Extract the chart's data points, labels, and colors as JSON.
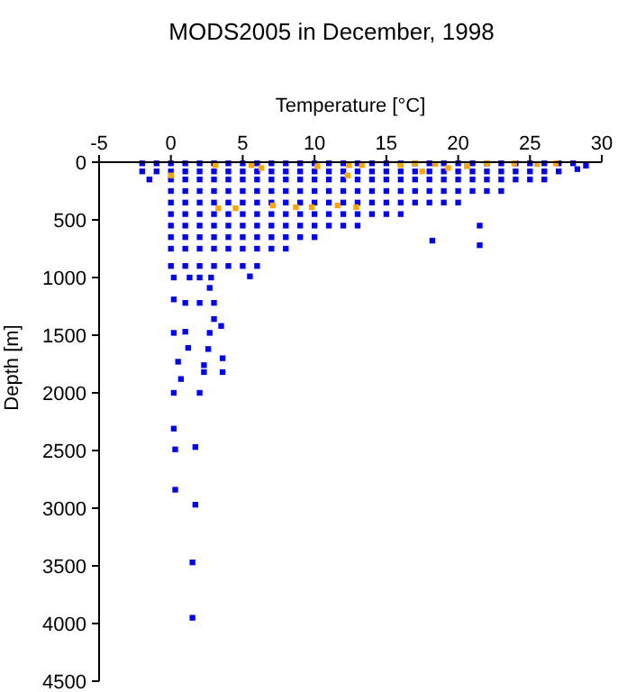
{
  "chart_data": {
    "type": "scatter",
    "title": "MODS2005 in December, 1998",
    "xlabel": "Temperature [°C]",
    "ylabel": "Depth [m]",
    "xlim": [
      -5,
      30
    ],
    "xticks": [
      -5,
      0,
      5,
      10,
      15,
      20,
      25,
      30
    ],
    "ylim": [
      4500,
      0
    ],
    "yticks": [
      0,
      500,
      1000,
      1500,
      2000,
      2500,
      3000,
      3500,
      4000,
      4500
    ],
    "grid": false,
    "marker": "square",
    "series": [
      {
        "color": "#0000ff",
        "x": [
          -2,
          -1,
          0,
          1,
          2,
          3,
          4,
          5,
          6,
          7,
          8,
          9,
          10,
          11,
          12,
          13,
          14,
          15,
          16,
          17,
          18,
          19,
          20,
          21,
          22,
          23,
          24,
          25,
          26,
          27,
          28,
          -2,
          -1,
          0,
          1,
          2,
          3,
          4,
          5,
          6,
          7,
          8,
          9,
          10,
          11,
          12,
          13,
          14,
          15,
          16,
          17,
          18,
          19,
          20,
          21,
          22,
          23,
          24,
          25,
          26,
          27,
          -1.5,
          0,
          1,
          2,
          3,
          4,
          5,
          6,
          7,
          8,
          9,
          10,
          11,
          12,
          13,
          14,
          15,
          16,
          17,
          18,
          19,
          20,
          21,
          22,
          23,
          24,
          25,
          26,
          0,
          1,
          2,
          3,
          4,
          5,
          6,
          7,
          8,
          9,
          10,
          11,
          12,
          13,
          14,
          15,
          16,
          17,
          18,
          19,
          20,
          21,
          22,
          23,
          0,
          1,
          2,
          3,
          4,
          5,
          6,
          7,
          8,
          9,
          10,
          11,
          12,
          13,
          14,
          15,
          16,
          17,
          18,
          19,
          20,
          0,
          1,
          2,
          3,
          4,
          5,
          6,
          7,
          8,
          9,
          10,
          11,
          12,
          13,
          14,
          15,
          16,
          0,
          1,
          2,
          3,
          4,
          5,
          6,
          7,
          8,
          9,
          10,
          11,
          12,
          13,
          0,
          1,
          2,
          3,
          4,
          5,
          6,
          7,
          8,
          9,
          10,
          0,
          1,
          2,
          3,
          4,
          5,
          6,
          7,
          8,
          0,
          1,
          2,
          3,
          4,
          5,
          6,
          28.3,
          28.9,
          21.5,
          21.5,
          18.2,
          0.2,
          1.3,
          2,
          2.8,
          5.5,
          0.2,
          1,
          2,
          3,
          2.7,
          0.2,
          1,
          2.7,
          3,
          3.5,
          1.2,
          2.6,
          0.5,
          2.3,
          3.6,
          0.7,
          2.3,
          3.6,
          0.2,
          2,
          0.2,
          0.3,
          1.7,
          0.3,
          1.7,
          1.5,
          1.5
        ],
        "values": [
          10,
          10,
          10,
          10,
          10,
          10,
          10,
          10,
          10,
          10,
          10,
          10,
          10,
          10,
          10,
          10,
          10,
          10,
          10,
          10,
          10,
          10,
          10,
          10,
          10,
          10,
          10,
          10,
          10,
          10,
          10,
          80,
          80,
          80,
          80,
          80,
          80,
          80,
          80,
          80,
          80,
          80,
          80,
          80,
          80,
          80,
          80,
          80,
          80,
          80,
          80,
          80,
          80,
          80,
          80,
          80,
          80,
          80,
          80,
          80,
          80,
          150,
          150,
          150,
          150,
          150,
          150,
          150,
          150,
          150,
          150,
          150,
          150,
          150,
          150,
          150,
          150,
          150,
          150,
          150,
          150,
          150,
          150,
          150,
          150,
          150,
          150,
          150,
          150,
          250,
          250,
          250,
          250,
          250,
          250,
          250,
          250,
          250,
          250,
          250,
          250,
          250,
          250,
          250,
          250,
          250,
          250,
          250,
          250,
          250,
          250,
          250,
          250,
          350,
          350,
          350,
          350,
          350,
          350,
          350,
          350,
          350,
          350,
          350,
          350,
          350,
          350,
          350,
          350,
          350,
          350,
          350,
          350,
          350,
          450,
          450,
          450,
          450,
          450,
          450,
          450,
          450,
          450,
          450,
          450,
          450,
          450,
          450,
          450,
          450,
          450,
          550,
          550,
          550,
          550,
          550,
          550,
          550,
          550,
          550,
          550,
          550,
          550,
          550,
          550,
          650,
          650,
          650,
          650,
          650,
          650,
          650,
          650,
          650,
          650,
          650,
          750,
          750,
          750,
          750,
          750,
          750,
          750,
          750,
          750,
          900,
          900,
          900,
          900,
          900,
          900,
          900,
          60,
          30,
          550,
          720,
          680,
          1000,
          1000,
          1000,
          1000,
          990,
          1190,
          1220,
          1220,
          1220,
          1090,
          1480,
          1470,
          1480,
          1360,
          1420,
          1610,
          1620,
          1730,
          1760,
          1700,
          1880,
          1820,
          1820,
          2000,
          2000,
          2310,
          2490,
          2470,
          2840,
          2970,
          3470,
          3950
        ]
      },
      {
        "color": "#ffa500",
        "x": [
          0,
          3.1,
          5.6,
          6.3,
          10.2,
          12.4,
          13.3,
          12.3,
          16,
          17,
          17.5,
          18.4,
          19.3,
          20.6,
          22,
          23.9,
          25.5,
          26.8,
          3.3,
          4.5,
          7.1,
          8.7,
          9.8,
          11.6,
          12.9
        ],
        "values": [
          115,
          25,
          25,
          50,
          35,
          25,
          25,
          115,
          25,
          10,
          80,
          15,
          50,
          35,
          10,
          10,
          15,
          10,
          400,
          400,
          375,
          390,
          390,
          375,
          390
        ]
      }
    ]
  }
}
